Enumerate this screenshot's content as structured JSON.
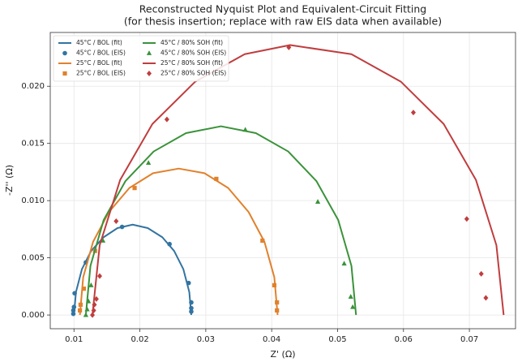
{
  "chart_data": {
    "type": "line",
    "title": "Reconstructed Nyquist Plot and Equivalent-Circuit Fitting",
    "subtitle": "(for thesis insertion; replace with raw EIS data when available)",
    "x_label": "Z' (Ω)",
    "y_label": "-Z'' (Ω)",
    "xlim": [
      0.0064,
      0.077
    ],
    "ylim": [
      -0.0012,
      0.0247
    ],
    "xticks": [
      0.01,
      0.02,
      0.03,
      0.04,
      0.05,
      0.06,
      0.07
    ],
    "yticks": [
      {
        "value": 0,
        "label": "0.000"
      },
      0.005,
      {
        "value": 0.01,
        "label": "0.010"
      },
      0.015,
      {
        "value": 0.02,
        "label": "0.020"
      }
    ],
    "grid": true,
    "legend": "upper left",
    "series": [
      {
        "name": "45°C / BOL (fit)",
        "kind": "line",
        "color": "#3274a1",
        "x": [
          0.01,
          0.0103,
          0.0112,
          0.0126,
          0.0145,
          0.0166,
          0.0189,
          0.0212,
          0.0234,
          0.0252,
          0.0266,
          0.0275,
          0.0278
        ],
        "values": [
          0,
          0.002,
          0.004,
          0.0056,
          0.0068,
          0.0076,
          0.0079,
          0.0076,
          0.0068,
          0.0056,
          0.004,
          0.002,
          0
        ]
      },
      {
        "name": "45°C / BOL (EIS)",
        "kind": "scatter",
        "marker": "circle",
        "color": "#3274a1",
        "x": [
          0.0099,
          0.0099,
          0.01,
          0.0101,
          0.0118,
          0.0173,
          0.0245,
          0.0274,
          0.0278,
          0.0278,
          0.0278
        ],
        "values": [
          0.0001,
          0.0004,
          0.0007,
          0.0019,
          0.0046,
          0.0077,
          0.0062,
          0.0028,
          0.0011,
          0.0006,
          0.0003
        ]
      },
      {
        "name": "25°C / BOL (fit)",
        "kind": "line",
        "color": "#e1812c",
        "x": [
          0.0109,
          0.0114,
          0.0129,
          0.0153,
          0.0184,
          0.022,
          0.0259,
          0.0298,
          0.0334,
          0.0365,
          0.0389,
          0.0404,
          0.0409
        ],
        "values": [
          0,
          0.0033,
          0.0064,
          0.009,
          0.0111,
          0.0124,
          0.0128,
          0.0124,
          0.0111,
          0.009,
          0.0064,
          0.0033,
          0
        ]
      },
      {
        "name": "25°C / BOL (EIS)",
        "kind": "scatter",
        "marker": "square",
        "color": "#e1812c",
        "x": [
          0.0109,
          0.011,
          0.0115,
          0.0132,
          0.0192,
          0.0316,
          0.0386,
          0.0404,
          0.0408,
          0.0408
        ],
        "values": [
          0.0004,
          0.0009,
          0.0023,
          0.0056,
          0.0111,
          0.0119,
          0.0065,
          0.0026,
          0.0011,
          0.0004
        ]
      },
      {
        "name": "45°C / 80% SOH (fit)",
        "kind": "line",
        "color": "#3a923a",
        "x": [
          0.0118,
          0.0125,
          0.0145,
          0.0178,
          0.0221,
          0.027,
          0.0323,
          0.0376,
          0.0425,
          0.0468,
          0.0501,
          0.0521,
          0.0528
        ],
        "values": [
          0,
          0.0043,
          0.0083,
          0.0117,
          0.0143,
          0.0159,
          0.0165,
          0.0159,
          0.0143,
          0.0117,
          0.0083,
          0.0043,
          0
        ]
      },
      {
        "name": "45°C / 80% SOH (EIS)",
        "kind": "scatter",
        "marker": "triangle",
        "color": "#3a923a",
        "x": [
          0.0118,
          0.012,
          0.0122,
          0.0126,
          0.0144,
          0.0213,
          0.036,
          0.047,
          0.051,
          0.052,
          0.0523
        ],
        "values": [
          0.0,
          0.0005,
          0.0012,
          0.0026,
          0.0065,
          0.0133,
          0.0162,
          0.0099,
          0.0045,
          0.0016,
          0.0007
        ]
      },
      {
        "name": "25°C / 80% SOH (fit)",
        "kind": "line",
        "color": "#c03d3e",
        "x": [
          0.0128,
          0.0139,
          0.017,
          0.0219,
          0.0284,
          0.0359,
          0.0428,
          0.0521,
          0.0596,
          0.0661,
          0.071,
          0.0741,
          0.0752
        ],
        "values": [
          0,
          0.0061,
          0.0118,
          0.0167,
          0.0204,
          0.0228,
          0.0236,
          0.0228,
          0.0204,
          0.0167,
          0.0118,
          0.0061,
          0
        ]
      },
      {
        "name": "25°C / 80% SOH (EIS)",
        "kind": "scatter",
        "marker": "diamond",
        "color": "#c03d3e",
        "x": [
          0.0128,
          0.013,
          0.0131,
          0.0134,
          0.0139,
          0.0164,
          0.0241,
          0.0426,
          0.0615,
          0.0696,
          0.0718,
          0.0725
        ],
        "values": [
          0.0,
          0.0004,
          0.0009,
          0.0014,
          0.0034,
          0.0082,
          0.0171,
          0.0234,
          0.0177,
          0.0084,
          0.0036,
          0.0015
        ]
      }
    ]
  }
}
